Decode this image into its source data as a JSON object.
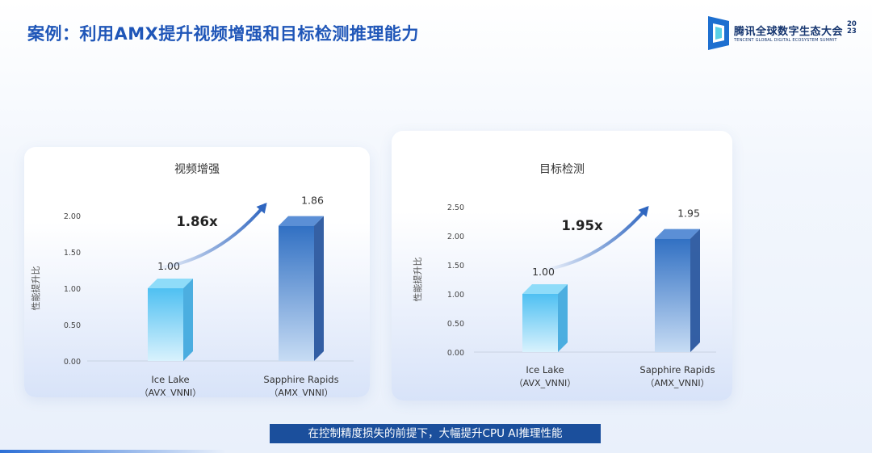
{
  "slide": {
    "title": "案例：利用AMX提升视频增强和目标检测推理能力",
    "caption": "在控制精度损失的前提下，大幅提升CPU AI推理性能"
  },
  "logo": {
    "name_cn": "腾讯全球数字生态大会",
    "year": "2023",
    "name_en": "TENCENT GLOBAL DIGITAL ECOSYSTEM SUMMIT"
  },
  "colors": {
    "title": "#1f56b8",
    "bar_light": "#5ec6f4",
    "bar_dark": "#2e6dc0",
    "caption_bg": "#1b4f9c",
    "arrow": "#2f66c0"
  },
  "chart_data": [
    {
      "type": "bar",
      "title": "视频增强",
      "ylabel": "性能提升比",
      "ylim": [
        0,
        2.0
      ],
      "yticks": [
        "0.00",
        "0.50",
        "1.00",
        "1.50",
        "2.00"
      ],
      "categories": [
        {
          "line1": "Ice Lake",
          "line2": "（AVX_VNNI）"
        },
        {
          "line1": "Sapphire Rapids",
          "line2": "（AMX_VNNI）"
        }
      ],
      "values": [
        1.0,
        1.86
      ],
      "value_labels": [
        "1.00",
        "1.86"
      ],
      "speedup_label": "1.86x"
    },
    {
      "type": "bar",
      "title": "目标检测",
      "ylabel": "性能提升比",
      "ylim": [
        0,
        2.5
      ],
      "yticks": [
        "0.00",
        "0.50",
        "1.00",
        "1.50",
        "2.00",
        "2.50"
      ],
      "categories": [
        {
          "line1": "Ice Lake",
          "line2": "（AVX_VNNI）"
        },
        {
          "line1": "Sapphire Rapids",
          "line2": "（AMX_VNNI）"
        }
      ],
      "values": [
        1.0,
        1.95
      ],
      "value_labels": [
        "1.00",
        "1.95"
      ],
      "speedup_label": "1.95x"
    }
  ]
}
